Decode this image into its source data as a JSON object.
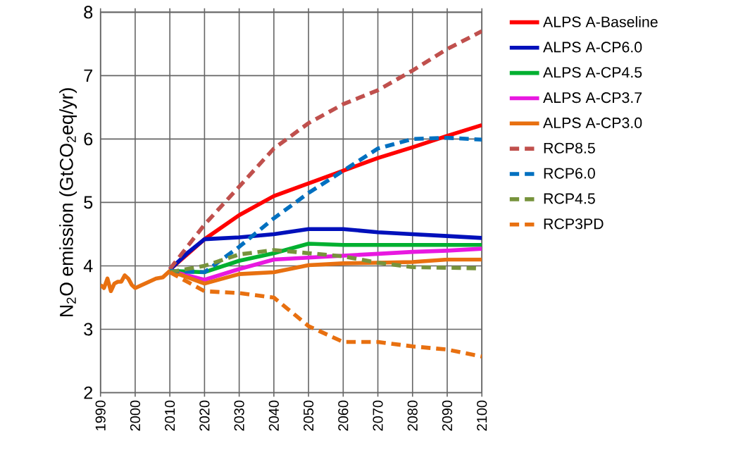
{
  "chart_data": {
    "type": "line",
    "ylabel": "N$_{2}$O emission (GtCO$_{2}$eq/yr)",
    "xlim": [
      1990,
      2100
    ],
    "ylim": [
      2,
      8
    ],
    "xticks": [
      1990,
      2000,
      2010,
      2020,
      2030,
      2040,
      2050,
      2060,
      2070,
      2080,
      2090,
      2100
    ],
    "yticks": [
      2,
      3,
      4,
      5,
      6,
      7,
      8
    ],
    "grid": true,
    "legend": "right",
    "marker": "none",
    "series": [
      {
        "name": "ALPS A-Baseline",
        "color": "#ff0000",
        "line_style": "solid",
        "x": [
          2010,
          2020,
          2030,
          2040,
          2050,
          2060,
          2070,
          2080,
          2090,
          2100
        ],
        "values": [
          3.94,
          4.42,
          4.8,
          5.1,
          5.3,
          5.5,
          5.7,
          5.87,
          6.05,
          6.22
        ]
      },
      {
        "name": "ALPS A-CP6.0",
        "color": "#0010bb",
        "line_style": "solid",
        "x": [
          2010,
          2015,
          2020,
          2030,
          2040,
          2050,
          2060,
          2070,
          2080,
          2090,
          2100
        ],
        "values": [
          3.94,
          4.2,
          4.42,
          4.45,
          4.5,
          4.58,
          4.58,
          4.53,
          4.5,
          4.47,
          4.44
        ]
      },
      {
        "name": "ALPS A-CP4.5",
        "color": "#00b030",
        "line_style": "solid",
        "x": [
          2010,
          2020,
          2030,
          2040,
          2050,
          2060,
          2070,
          2080,
          2090,
          2100
        ],
        "values": [
          3.92,
          3.9,
          4.08,
          4.2,
          4.35,
          4.33,
          4.33,
          4.33,
          4.33,
          4.33
        ]
      },
      {
        "name": "ALPS A-CP3.7",
        "color": "#e818e0",
        "line_style": "solid",
        "x": [
          2010,
          2020,
          2030,
          2040,
          2050,
          2060,
          2070,
          2080,
          2090,
          2100
        ],
        "values": [
          3.92,
          3.78,
          3.95,
          4.1,
          4.13,
          4.16,
          4.19,
          4.22,
          4.24,
          4.27
        ]
      },
      {
        "name": "ALPS A-CP3.0",
        "color": "#e87010",
        "line_style": "solid",
        "x": [
          1990,
          1991,
          1992,
          1993,
          1994,
          1995,
          1996,
          1997,
          1998,
          1999,
          2000,
          2002,
          2004,
          2006,
          2008,
          2010,
          2020,
          2030,
          2040,
          2050,
          2060,
          2070,
          2080,
          2090,
          2100
        ],
        "values": [
          3.7,
          3.65,
          3.8,
          3.6,
          3.72,
          3.75,
          3.75,
          3.85,
          3.8,
          3.7,
          3.65,
          3.7,
          3.75,
          3.8,
          3.82,
          3.92,
          3.72,
          3.87,
          3.9,
          4.01,
          4.04,
          4.05,
          4.06,
          4.1,
          4.1
        ]
      },
      {
        "name": "RCP8.5",
        "color": "#c0504d",
        "line_style": "dashed",
        "x": [
          2010,
          2020,
          2030,
          2040,
          2050,
          2060,
          2070,
          2080,
          2090,
          2100
        ],
        "values": [
          3.95,
          4.65,
          5.25,
          5.85,
          6.25,
          6.55,
          6.77,
          7.08,
          7.42,
          7.7
        ]
      },
      {
        "name": "RCP6.0",
        "color": "#0070c0",
        "line_style": "dashed",
        "x": [
          2010,
          2020,
          2030,
          2040,
          2050,
          2060,
          2070,
          2080,
          2090,
          2100
        ],
        "values": [
          3.92,
          3.9,
          4.3,
          4.75,
          5.15,
          5.5,
          5.85,
          6.0,
          6.02,
          5.99
        ]
      },
      {
        "name": "RCP4.5",
        "color": "#77933c",
        "line_style": "dashed",
        "x": [
          2010,
          2020,
          2030,
          2040,
          2050,
          2060,
          2070,
          2080,
          2090,
          2100
        ],
        "values": [
          3.9,
          4.0,
          4.18,
          4.25,
          4.2,
          4.15,
          4.05,
          3.98,
          3.97,
          3.96
        ]
      },
      {
        "name": "RCP3PD",
        "color": "#e87010",
        "line_style": "dashed",
        "x": [
          2010,
          2020,
          2030,
          2040,
          2050,
          2060,
          2070,
          2080,
          2090,
          2100
        ],
        "values": [
          3.9,
          3.6,
          3.57,
          3.5,
          3.05,
          2.8,
          2.8,
          2.73,
          2.68,
          2.57
        ]
      }
    ]
  }
}
